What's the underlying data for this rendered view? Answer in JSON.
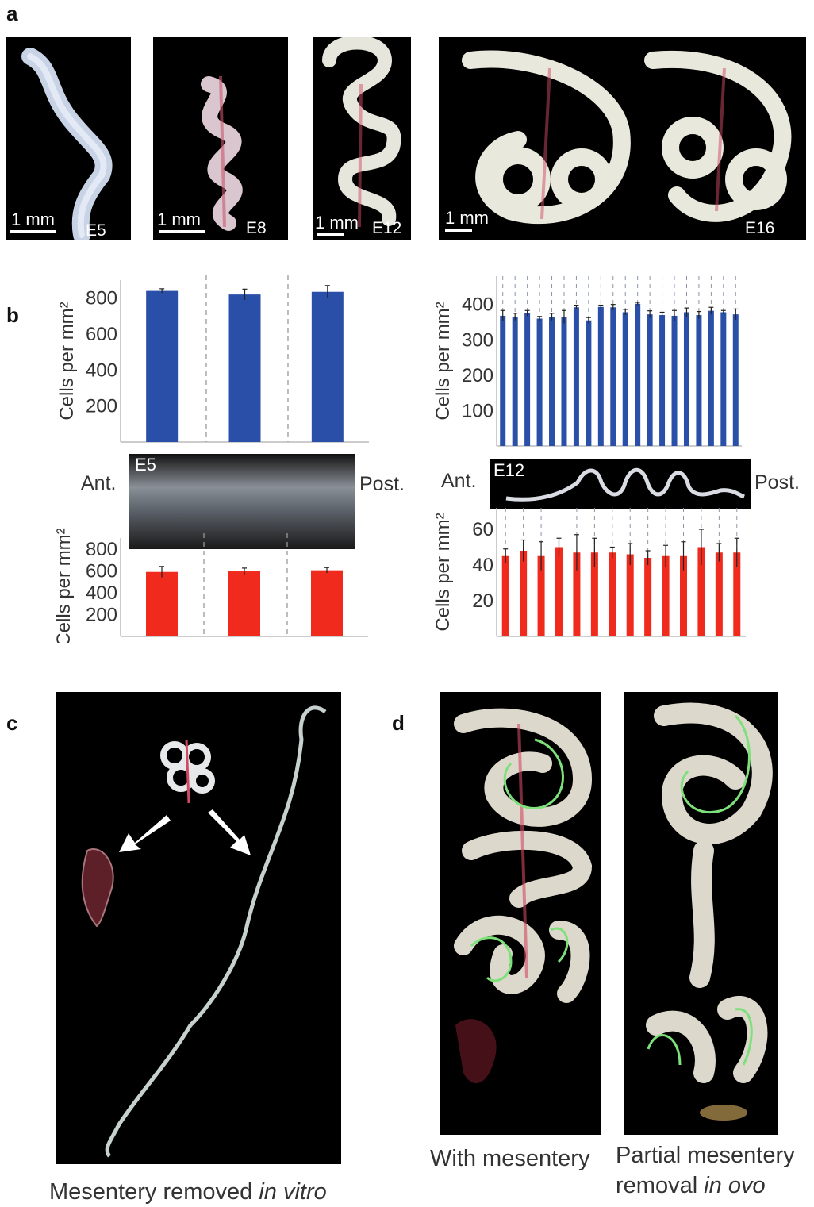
{
  "panel_a": {
    "letter": "a",
    "photos": [
      {
        "stage": "E5",
        "scale": "1 mm"
      },
      {
        "stage": "E8",
        "scale": "1 mm"
      },
      {
        "stage": "E12",
        "scale": "1 mm"
      },
      {
        "stage": "E16",
        "scale": "1 mm"
      }
    ]
  },
  "panel_b": {
    "letter": "b",
    "left": {
      "image_label": "E5",
      "ant": "Ant.",
      "post": "Post."
    },
    "right": {
      "image_label": "E12",
      "ant": "Ant.",
      "post": "Post."
    }
  },
  "panel_c": {
    "letter": "c",
    "caption_plain": "Mesentery removed ",
    "caption_italic": "in vitro"
  },
  "panel_d": {
    "letter": "d",
    "caption_left": "With mesentery",
    "caption_right_line1": "Partial mesentery",
    "caption_right_plain": "removal ",
    "caption_right_italic": "in ovo"
  },
  "colors": {
    "blue": "#2a4fa8",
    "red": "#f02a1c",
    "green_trace": "#7ee07a"
  },
  "chart_data": [
    {
      "type": "bar",
      "ylabel": "Cells per mm²",
      "yticks": [
        200,
        400,
        600,
        800
      ],
      "ylim": [
        0,
        900
      ],
      "values": [
        840,
        820,
        835
      ],
      "errors": [
        12,
        30,
        35
      ],
      "color": "blue"
    },
    {
      "type": "bar",
      "ylabel": "Cells per mm²",
      "yticks": [
        200,
        400,
        600,
        800
      ],
      "ylim": [
        0,
        900
      ],
      "values": [
        590,
        595,
        605
      ],
      "errors": [
        50,
        30,
        25
      ],
      "color": "red"
    },
    {
      "type": "bar",
      "ylabel": "Cells per mm²",
      "yticks": [
        100,
        200,
        300,
        400
      ],
      "ylim": [
        0,
        480
      ],
      "values": [
        368,
        365,
        375,
        360,
        365,
        365,
        392,
        355,
        393,
        392,
        378,
        402,
        372,
        370,
        368,
        378,
        370,
        382,
        378,
        372
      ],
      "errors": [
        15,
        10,
        8,
        6,
        10,
        18,
        6,
        8,
        5,
        8,
        8,
        4,
        10,
        8,
        15,
        12,
        10,
        10,
        5,
        15
      ],
      "color": "blue"
    },
    {
      "type": "bar",
      "ylabel": "Cells per mm²",
      "yticks": [
        20,
        40,
        60
      ],
      "ylim": [
        0,
        72
      ],
      "values": [
        45,
        48,
        45,
        50,
        47,
        47,
        47,
        46,
        44,
        45,
        45,
        50,
        47,
        47
      ],
      "errors": [
        4,
        6,
        8,
        5,
        10,
        8,
        3,
        6,
        4,
        6,
        8,
        10,
        5,
        8
      ],
      "color": "red"
    }
  ]
}
